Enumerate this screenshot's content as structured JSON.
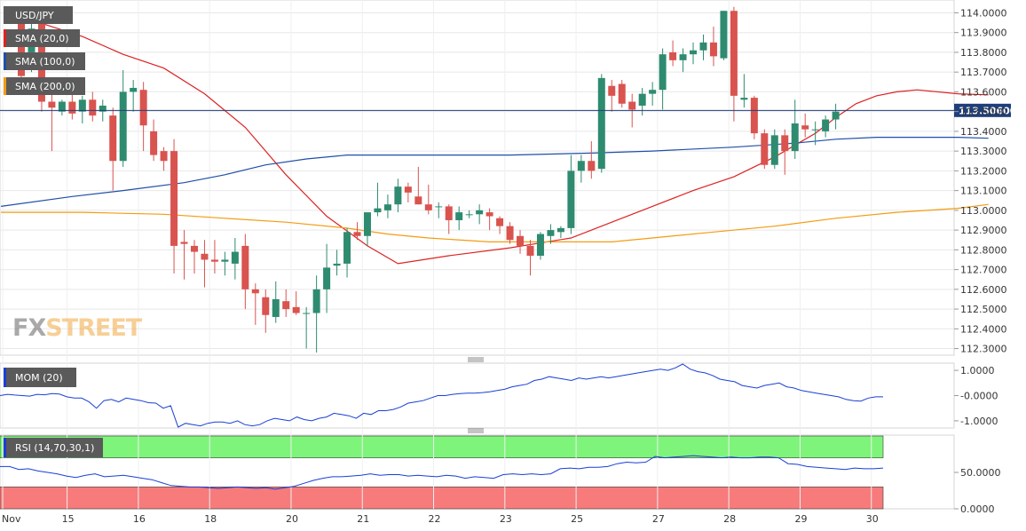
{
  "legend": {
    "symbol": "USD/JPY",
    "sma20": "SMA (20,0)",
    "sma100": "SMA (100,0)",
    "sma200": "SMA (200,0)",
    "mom": "MOM (20)",
    "rsi": "RSI (14,70,30,1)"
  },
  "current_price_label": "113.50600",
  "logo": {
    "fx": "FX",
    "street": "STREET"
  },
  "colors": {
    "bull": "#2e8b70",
    "bear": "#d9534f",
    "sma20": "#dd2222",
    "sma100": "#1f4fa8",
    "sma200": "#f39c12",
    "mom_line": "#1a3fd6",
    "rsi_line": "#1a3fd6",
    "rsi_overbought_zone": "#7ef57a",
    "rsi_oversold_zone": "#f77b7b",
    "legend_bg": "#5a5a5a",
    "price_line": "#1f3f7a"
  },
  "chart_data": [
    {
      "type": "candlestick",
      "title": "USD/JPY",
      "ylim": [
        112.28,
        114.02
      ],
      "yticks": [
        "114.0000",
        "113.9000",
        "113.8000",
        "113.7000",
        "113.6000",
        "113.5000",
        "113.4000",
        "113.3000",
        "113.2000",
        "113.1000",
        "113.0000",
        "112.9000",
        "112.8000",
        "112.7000",
        "112.6000",
        "112.5000",
        "112.4000",
        "112.3000"
      ],
      "date_labels": [
        "Nov",
        "15",
        "16",
        "18",
        "20",
        "21",
        "22",
        "23",
        "25",
        "27",
        "28",
        "29",
        "30"
      ],
      "last_price": 113.506,
      "candles": [
        [
          113.95,
          113.98,
          113.6,
          113.68
        ],
        [
          113.8,
          113.99,
          113.7,
          113.92
        ],
        [
          113.95,
          113.98,
          113.5,
          113.55
        ],
        [
          113.55,
          113.6,
          113.3,
          113.52
        ],
        [
          113.5,
          113.56,
          113.48,
          113.55
        ],
        [
          113.55,
          113.62,
          113.46,
          113.49
        ],
        [
          113.5,
          113.58,
          113.44,
          113.56
        ],
        [
          113.56,
          113.6,
          113.45,
          113.48
        ],
        [
          113.5,
          113.56,
          113.45,
          113.53
        ],
        [
          113.48,
          113.52,
          113.1,
          113.25
        ],
        [
          113.25,
          113.71,
          113.22,
          113.6
        ],
        [
          113.6,
          113.66,
          113.5,
          113.62
        ],
        [
          113.61,
          113.65,
          113.3,
          113.43
        ],
        [
          113.4,
          113.46,
          113.25,
          113.28
        ],
        [
          113.3,
          113.32,
          113.2,
          113.25
        ],
        [
          113.3,
          113.36,
          112.68,
          112.82
        ],
        [
          112.84,
          112.9,
          112.65,
          112.83
        ],
        [
          112.82,
          112.85,
          112.68,
          112.79
        ],
        [
          112.78,
          112.85,
          112.61,
          112.75
        ],
        [
          112.75,
          112.85,
          112.68,
          112.74
        ],
        [
          112.74,
          112.79,
          112.67,
          112.75
        ],
        [
          112.73,
          112.86,
          112.65,
          112.79
        ],
        [
          112.82,
          112.88,
          112.5,
          112.6
        ],
        [
          112.6,
          112.63,
          112.42,
          112.58
        ],
        [
          112.56,
          112.6,
          112.38,
          112.47
        ],
        [
          112.46,
          112.64,
          112.43,
          112.55
        ],
        [
          112.54,
          112.6,
          112.46,
          112.5
        ],
        [
          112.51,
          112.59,
          112.47,
          112.48
        ],
        [
          112.48,
          112.51,
          112.3,
          112.48
        ],
        [
          112.48,
          112.67,
          112.28,
          112.6
        ],
        [
          112.6,
          112.83,
          112.48,
          112.71
        ],
        [
          112.72,
          112.8,
          112.67,
          112.73
        ],
        [
          112.73,
          112.91,
          112.66,
          112.89
        ],
        [
          112.89,
          112.94,
          112.85,
          112.87
        ],
        [
          112.87,
          112.98,
          112.82,
          112.99
        ],
        [
          112.99,
          113.14,
          112.97,
          113.01
        ],
        [
          113.0,
          113.08,
          112.96,
          113.03
        ],
        [
          113.03,
          113.16,
          112.99,
          113.12
        ],
        [
          113.12,
          113.14,
          113.04,
          113.09
        ],
        [
          113.07,
          113.22,
          113.03,
          113.03
        ],
        [
          113.03,
          113.13,
          112.98,
          113.0
        ],
        [
          113.02,
          113.04,
          112.96,
          113.02
        ],
        [
          113.02,
          113.03,
          112.88,
          112.95
        ],
        [
          112.95,
          113.02,
          112.9,
          112.99
        ],
        [
          112.98,
          113.0,
          112.96,
          112.98
        ],
        [
          112.98,
          113.03,
          112.93,
          113.0
        ],
        [
          112.99,
          113.01,
          112.9,
          112.97
        ],
        [
          112.96,
          112.97,
          112.88,
          112.92
        ],
        [
          112.92,
          112.94,
          112.83,
          112.85
        ],
        [
          112.87,
          112.9,
          112.78,
          112.82
        ],
        [
          112.82,
          112.85,
          112.67,
          112.77
        ],
        [
          112.77,
          112.89,
          112.75,
          112.88
        ],
        [
          112.87,
          112.93,
          112.83,
          112.9
        ],
        [
          112.89,
          112.92,
          112.86,
          112.91
        ],
        [
          112.91,
          113.28,
          112.88,
          113.2
        ],
        [
          113.2,
          113.28,
          113.14,
          113.25
        ],
        [
          113.25,
          113.35,
          113.16,
          113.2
        ],
        [
          113.21,
          113.69,
          113.19,
          113.67
        ],
        [
          113.63,
          113.66,
          113.5,
          113.58
        ],
        [
          113.64,
          113.66,
          113.52,
          113.54
        ],
        [
          113.55,
          113.59,
          113.42,
          113.51
        ],
        [
          113.53,
          113.62,
          113.48,
          113.59
        ],
        [
          113.59,
          113.65,
          113.53,
          113.61
        ],
        [
          113.61,
          113.82,
          113.51,
          113.79
        ],
        [
          113.8,
          113.86,
          113.73,
          113.76
        ],
        [
          113.76,
          113.82,
          113.7,
          113.79
        ],
        [
          113.79,
          113.85,
          113.74,
          113.81
        ],
        [
          113.81,
          113.89,
          113.76,
          113.85
        ],
        [
          113.85,
          113.93,
          113.73,
          113.78
        ],
        [
          113.77,
          114.01,
          113.76,
          114.01
        ],
        [
          114.01,
          114.03,
          113.45,
          113.58
        ],
        [
          113.56,
          113.69,
          113.52,
          113.57
        ],
        [
          113.57,
          113.58,
          113.36,
          113.39
        ],
        [
          113.39,
          113.41,
          113.21,
          113.23
        ],
        [
          113.23,
          113.41,
          113.21,
          113.38
        ],
        [
          113.38,
          113.41,
          113.18,
          113.3
        ],
        [
          113.3,
          113.56,
          113.26,
          113.44
        ],
        [
          113.43,
          113.49,
          113.37,
          113.41
        ],
        [
          113.41,
          113.45,
          113.33,
          113.41
        ],
        [
          113.4,
          113.48,
          113.37,
          113.46
        ],
        [
          113.46,
          113.54,
          113.41,
          113.5
        ]
      ],
      "series": [
        {
          "name": "SMA (20,0)",
          "values": [
            [
              0,
              113.98
            ],
            [
              6,
              113.88
            ],
            [
              10,
              113.79
            ],
            [
              14,
              113.72
            ],
            [
              18,
              113.59
            ],
            [
              22,
              113.42
            ],
            [
              26,
              113.18
            ],
            [
              30,
              112.97
            ],
            [
              34,
              112.82
            ],
            [
              37,
              112.73
            ],
            [
              42,
              112.77
            ],
            [
              48,
              112.81
            ],
            [
              54,
              112.86
            ],
            [
              58,
              112.94
            ],
            [
              62,
              113.02
            ],
            [
              66,
              113.1
            ],
            [
              70,
              113.17
            ],
            [
              74,
              113.27
            ],
            [
              78,
              113.39
            ],
            [
              80,
              113.47
            ],
            [
              82,
              113.54
            ],
            [
              84,
              113.58
            ],
            [
              86,
              113.6
            ],
            [
              88,
              113.61
            ],
            [
              92,
              113.59
            ],
            [
              95,
              113.585
            ]
          ]
        },
        {
          "name": "SMA (100,0)",
          "values": [
            [
              -2,
              113.02
            ],
            [
              5,
              113.07
            ],
            [
              10,
              113.1
            ],
            [
              16,
              113.14
            ],
            [
              20,
              113.18
            ],
            [
              24,
              113.23
            ],
            [
              28,
              113.26
            ],
            [
              32,
              113.28
            ],
            [
              40,
              113.28
            ],
            [
              48,
              113.28
            ],
            [
              56,
              113.29
            ],
            [
              62,
              113.3
            ],
            [
              70,
              113.32
            ],
            [
              76,
              113.34
            ],
            [
              80,
              113.36
            ],
            [
              84,
              113.37
            ],
            [
              88,
              113.37
            ],
            [
              92,
              113.37
            ],
            [
              95,
              113.365
            ]
          ]
        },
        {
          "name": "SMA (200,0)",
          "values": [
            [
              -2,
              112.99
            ],
            [
              6,
              112.99
            ],
            [
              14,
              112.98
            ],
            [
              20,
              112.96
            ],
            [
              26,
              112.94
            ],
            [
              32,
              112.91
            ],
            [
              36,
              112.88
            ],
            [
              40,
              112.86
            ],
            [
              46,
              112.84
            ],
            [
              52,
              112.84
            ],
            [
              58,
              112.84
            ],
            [
              62,
              112.86
            ],
            [
              68,
              112.89
            ],
            [
              74,
              112.92
            ],
            [
              80,
              112.96
            ],
            [
              86,
              112.99
            ],
            [
              92,
              113.01
            ],
            [
              95,
              113.03
            ]
          ]
        }
      ]
    },
    {
      "type": "line",
      "title": "MOM (20)",
      "ylim": [
        -1.25,
        1.25
      ],
      "yticks": [
        "1.0000",
        "-0.0000",
        "-1.0000"
      ],
      "series": [
        {
          "name": "MOM (20)",
          "values": [
            0.0,
            0.05,
            0.02,
            0.0,
            -0.02,
            0.05,
            0.03,
            0.08,
            0.06,
            -0.05,
            -0.1,
            -0.1,
            -0.25,
            -0.5,
            -0.2,
            -0.15,
            -0.25,
            -0.1,
            -0.15,
            -0.2,
            -0.28,
            -0.3,
            -0.5,
            -0.4,
            -1.25,
            -1.1,
            -1.15,
            -1.2,
            -1.1,
            -1.05,
            -1.05,
            -1.1,
            -1.0,
            -1.15,
            -1.2,
            -1.15,
            -1.0,
            -0.9,
            -0.95,
            -1.0,
            -0.85,
            -0.95,
            -1.0,
            -0.9,
            -0.85,
            -0.7,
            -0.75,
            -0.8,
            -0.9,
            -0.7,
            -0.75,
            -0.6,
            -0.6,
            -0.55,
            -0.45,
            -0.3,
            -0.25,
            -0.2,
            -0.1,
            0.0,
            0.0,
            0.05,
            0.08,
            0.1,
            0.1,
            0.12,
            0.15,
            0.2,
            0.25,
            0.35,
            0.4,
            0.45,
            0.6,
            0.65,
            0.75,
            0.7,
            0.65,
            0.6,
            0.7,
            0.65,
            0.7,
            0.75,
            0.7,
            0.75,
            0.8,
            0.85,
            0.9,
            0.95,
            1.0,
            1.05,
            1.0,
            1.1,
            1.25,
            1.05,
            0.95,
            0.9,
            0.8,
            0.65,
            0.6,
            0.55,
            0.4,
            0.35,
            0.3,
            0.4,
            0.45,
            0.5,
            0.35,
            0.3,
            0.2,
            0.15,
            0.1,
            0.05,
            0.0,
            -0.05,
            -0.15,
            -0.2,
            -0.22,
            -0.1,
            -0.05,
            -0.05
          ]
        }
      ]
    },
    {
      "type": "line",
      "title": "RSI (14,70,30,1)",
      "ylim": [
        0,
        100
      ],
      "yticks": [
        "50.0000",
        "0.0000"
      ],
      "overbought": 70,
      "oversold": 30,
      "series": [
        {
          "name": "RSI (14,70,30,1)",
          "values": [
            58,
            58,
            54,
            55,
            52,
            50,
            48,
            45,
            43,
            46,
            48,
            44,
            45,
            46,
            44,
            42,
            40,
            36,
            32,
            31,
            30,
            30,
            29,
            28,
            29,
            30,
            29,
            28,
            29,
            27,
            29,
            31,
            35,
            39,
            42,
            44,
            44,
            45,
            46,
            48,
            46,
            47,
            47,
            45,
            46,
            45,
            44,
            46,
            45,
            42,
            44,
            43,
            42,
            47,
            48,
            47,
            48,
            47,
            48,
            55,
            56,
            55,
            57,
            57,
            58,
            62,
            64,
            63,
            64,
            72,
            70,
            71,
            72,
            73,
            72,
            71,
            70,
            71,
            70,
            70,
            71,
            71,
            70,
            62,
            61,
            58,
            57,
            56,
            55,
            54,
            56,
            55,
            55,
            56
          ]
        }
      ]
    }
  ]
}
